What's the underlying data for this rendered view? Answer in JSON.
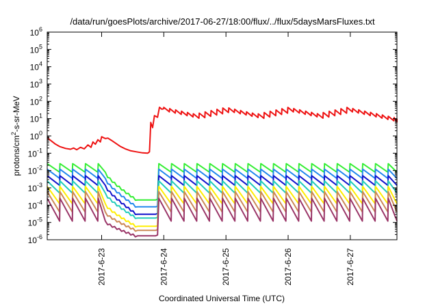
{
  "chart_data": {
    "type": "line",
    "title": "/data/run/goesPlots/archive/2017-06-27/18:00/flux/../flux/5daysMarsFluxes.txt",
    "xlabel": "Coordinated Universal Time (UTC)",
    "ylabel_parts": {
      "base": "protons/cm",
      "exp": "2",
      "rest": "-s-sr-MeV"
    },
    "yscale": "log",
    "ylim_exp": [
      -6,
      6
    ],
    "y_tick_exponents": [
      -6,
      -5,
      -4,
      -3,
      -2,
      -1,
      0,
      1,
      2,
      3,
      4,
      5,
      6
    ],
    "y_tick_base": "10",
    "xlim_days": [
      2017.0622,
      2017.0628
    ],
    "x_ticks": [
      "2017-6-23",
      "2017-6-24",
      "2017-6-25",
      "2017-6-26",
      "2017-6-27"
    ],
    "x_start": "2017-06-22 03:00",
    "x_end": "2017-06-27 18:00",
    "grid": false,
    "legend": "none",
    "series": [
      {
        "color": "#ee1111",
        "profile": "high",
        "sawtooth_low": 10,
        "sawtooth_high": 40
      },
      {
        "color": "#33ee33",
        "profile": "channel",
        "hi": 0.025,
        "lo": 0.008,
        "dip": 0.0002
      },
      {
        "color": "#2288ee",
        "profile": "channel",
        "hi": 0.012,
        "lo": 0.0035,
        "dip": 8e-05
      },
      {
        "color": "#1111cc",
        "profile": "channel",
        "hi": 0.005,
        "lo": 0.0014,
        "dip": 3e-05
      },
      {
        "color": "#22ccbb",
        "profile": "channel",
        "hi": 0.0025,
        "lo": 0.0005,
        "dip": 1.8e-05
      },
      {
        "color": "#ffee00",
        "profile": "channel",
        "hi": 0.0012,
        "lo": 0.00012,
        "dip": 6e-06
      },
      {
        "color": "#cc8855",
        "profile": "channel",
        "hi": 0.0006,
        "lo": 4e-05,
        "dip": 3.5e-06
      },
      {
        "color": "#993366",
        "profile": "channel",
        "hi": 0.00025,
        "lo": 1.2e-05,
        "dip": 1.7e-06
      }
    ]
  }
}
